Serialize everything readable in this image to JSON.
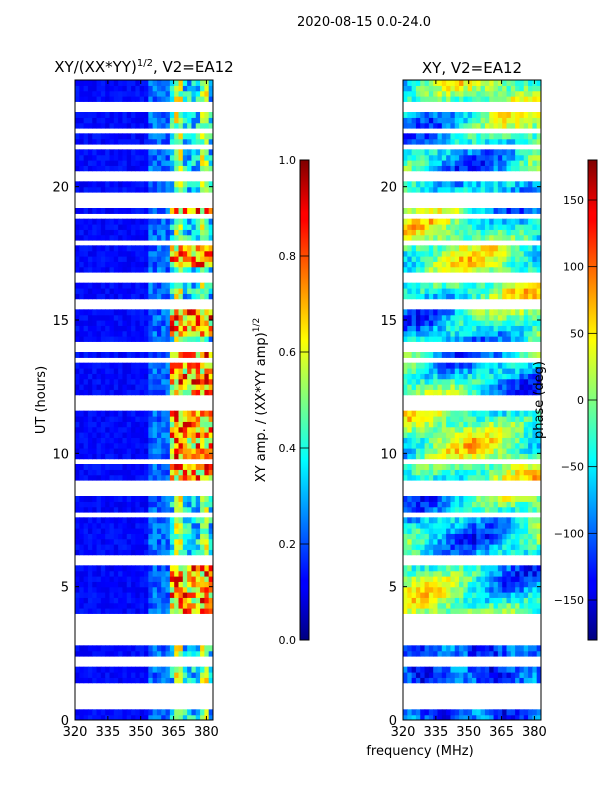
{
  "figure": {
    "suptitle": "2020-08-15 0.0-24.0",
    "shared_xlabel": "frequency (MHz)"
  },
  "chart_data": [
    {
      "type": "heatmap",
      "title_main": "XY/(XX*YY)",
      "title_sup": "1/2",
      "title_tail": ", V2=EA12",
      "xlabel": "",
      "ylabel": "UT (hours)",
      "xlim": [
        320,
        383
      ],
      "ylim": [
        0,
        24
      ],
      "xticks": [
        320,
        335,
        350,
        365,
        380
      ],
      "yticks": [
        0,
        5,
        10,
        15,
        20
      ],
      "colorbar": {
        "label_main": "XY amp. / (XX*YY amp)",
        "label_sup": "1/2",
        "range": [
          0.0,
          1.0
        ],
        "ticks": [
          "0.0",
          "0.2",
          "0.4",
          "0.6",
          "0.8",
          "1.0"
        ],
        "colormap": "jet"
      },
      "gap_rows_ut": [
        0.5,
        0.9,
        1.2,
        2.1,
        2.9,
        3.3,
        3.6,
        3.8,
        5.9,
        7.6,
        8.4,
        8.7,
        9.6,
        11.7,
        12.0,
        13.4,
        13.9,
        15.5,
        16.5,
        17.8,
        18.8,
        19.3,
        19.6,
        20.3,
        21.4,
        22.0,
        22.9
      ],
      "bright_bands": [
        {
          "ut": [
            4.0,
            5.8
          ],
          "level": "high"
        },
        {
          "ut": [
            8.8,
            11.6
          ],
          "level": "high"
        },
        {
          "ut": [
            12.1,
            13.8
          ],
          "level": "high"
        },
        {
          "ut": [
            14.3,
            15.4
          ],
          "level": "high"
        },
        {
          "ut": [
            16.8,
            17.9
          ],
          "level": "high"
        },
        {
          "ut": [
            18.6,
            19.7
          ],
          "level": "high"
        }
      ],
      "note": "low normalized amplitude (~0.05-0.2) below 352 MHz; 355-380 MHz shows amplitudes ~0.3-0.95"
    },
    {
      "type": "heatmap",
      "title_main": "XY, V2=EA12",
      "xlabel": "",
      "ylabel": "",
      "xlim": [
        320,
        383
      ],
      "ylim": [
        0,
        24
      ],
      "xticks": [
        320,
        335,
        350,
        365,
        380
      ],
      "yticks": [
        0,
        5,
        10,
        15,
        20
      ],
      "colorbar": {
        "label": "phase (deg)",
        "range": [
          -180,
          180
        ],
        "ticks": [
          "−150",
          "−100",
          "−50",
          "0",
          "50",
          "100",
          "150"
        ],
        "tick_values": [
          -150,
          -100,
          -50,
          0,
          50,
          100,
          150
        ],
        "colormap": "jet"
      },
      "gap_rows_ut": [
        0.5,
        0.9,
        1.2,
        2.1,
        2.9,
        3.3,
        3.6,
        3.8,
        5.9,
        7.6,
        8.4,
        8.7,
        9.6,
        11.7,
        12.0,
        13.4,
        13.9,
        15.5,
        16.5,
        17.8,
        18.8,
        19.3,
        19.6,
        20.3,
        21.4,
        22.0,
        22.9
      ],
      "note": "phase varies smoothly in time with banded structure; mostly -120 to 60 deg early UT, mixed -180..180 later"
    }
  ]
}
